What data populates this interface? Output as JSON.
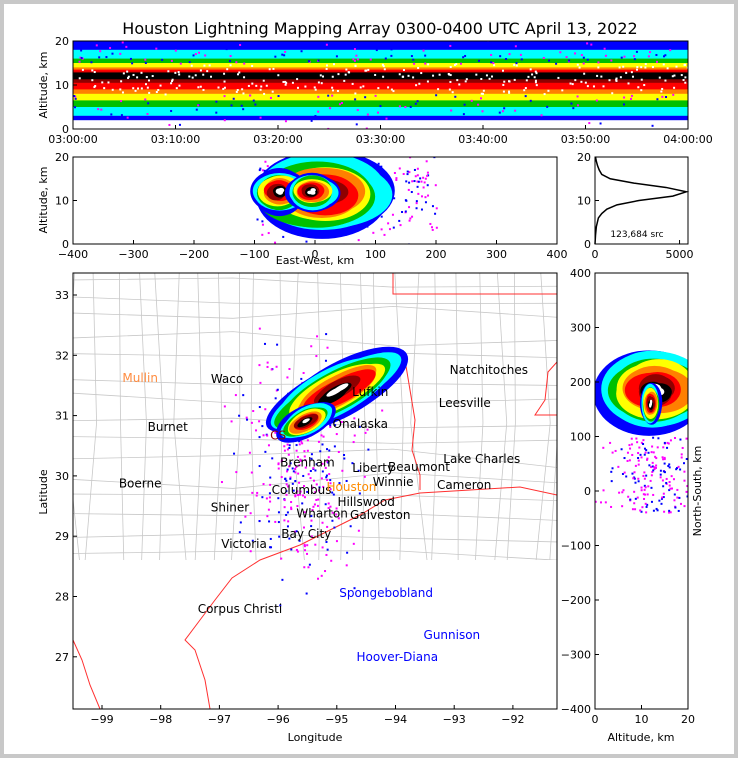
{
  "chart_data": {
    "title": "Houston Lightning Mapping Array 0300-0400 UTC April 13, 2022",
    "panels": [
      {
        "id": "time-height",
        "type": "scatter",
        "ylabel": "Altitude, km",
        "ylim": [
          0,
          20
        ],
        "yticks": [
          "0",
          "10",
          "20"
        ],
        "xticks": [
          "03:00:00",
          "03:10:00",
          "03:20:00",
          "03:30:00",
          "03:40:00",
          "03:50:00",
          "04:00:00"
        ],
        "band_center_km": 12,
        "band_spread_km": [
          2,
          20
        ]
      },
      {
        "id": "east-west-height",
        "type": "scatter",
        "xlabel": "East-West, km",
        "ylabel": "Altitude, km",
        "xlim": [
          -400,
          400
        ],
        "ylim": [
          0,
          20
        ],
        "xticks": [
          "−400",
          "−300",
          "−200",
          "−100",
          "0",
          "100",
          "200",
          "300",
          "400"
        ],
        "yticks": [
          "0",
          "10",
          "20"
        ],
        "core_x_km": [
          -100,
          120
        ],
        "core_alt_km": 12
      },
      {
        "id": "altitude-histogram",
        "type": "line",
        "xlim": [
          0,
          5500
        ],
        "ylim": [
          0,
          20
        ],
        "xticks": [
          "0",
          "5000"
        ],
        "yticks": [
          "0",
          "10",
          "20"
        ],
        "annotation": "123,684 src",
        "altitude": [
          0,
          2,
          4,
          6,
          7,
          8,
          9,
          10,
          11,
          12,
          13,
          14,
          15,
          16,
          17,
          18,
          19,
          20
        ],
        "counts": [
          0,
          30,
          80,
          200,
          400,
          700,
          1300,
          2600,
          4600,
          5400,
          4200,
          2300,
          900,
          400,
          250,
          150,
          80,
          30
        ]
      },
      {
        "id": "plan-view",
        "type": "scatter",
        "xlabel": "Longitude",
        "ylabel": "Latitude",
        "xlim": [
          -99.5,
          -91.25
        ],
        "ylim": [
          26.13,
          33.36
        ],
        "xticks": [
          "−99",
          "−98",
          "−97",
          "−96",
          "−95",
          "−94",
          "−93",
          "−92"
        ],
        "yticks": [
          "27",
          "28",
          "29",
          "30",
          "31",
          "32",
          "33"
        ],
        "cities": [
          {
            "name": "Mullin",
            "lon": -98.35,
            "lat": 31.62,
            "color": "#ff8c40"
          },
          {
            "name": "Waco",
            "lon": -96.87,
            "lat": 31.61,
            "color": "#000000"
          },
          {
            "name": "Burnet",
            "lon": -97.88,
            "lat": 30.81,
            "color": "#000000"
          },
          {
            "name": "Boerne",
            "lon": -98.35,
            "lat": 29.87,
            "color": "#000000"
          },
          {
            "name": "Shiner",
            "lon": -96.82,
            "lat": 29.48,
            "color": "#000000"
          },
          {
            "name": "Victoria",
            "lon": -96.58,
            "lat": 28.87,
            "color": "#000000"
          },
          {
            "name": "Corpus Christi",
            "lon": -96.65,
            "lat": 27.79,
            "color": "#000000"
          },
          {
            "name": "Natchitoches",
            "lon": -92.41,
            "lat": 31.76,
            "color": "#000000"
          },
          {
            "name": "Leesville",
            "lon": -92.82,
            "lat": 31.21,
            "color": "#000000"
          },
          {
            "name": "Lake Charles",
            "lon": -92.53,
            "lat": 30.28,
            "color": "#000000"
          },
          {
            "name": "Cameron",
            "lon": -92.83,
            "lat": 29.85,
            "color": "#000000"
          },
          {
            "name": "Beaumont",
            "lon": -93.6,
            "lat": 30.15,
            "color": "#000000"
          },
          {
            "name": "Winnie",
            "lon": -94.04,
            "lat": 29.9,
            "color": "#000000"
          },
          {
            "name": "Lufkin",
            "lon": -94.43,
            "lat": 31.39,
            "color": "#000000"
          },
          {
            "name": "Onalaska",
            "lon": -94.6,
            "lat": 30.86,
            "color": "#000000"
          },
          {
            "name": "Liberty",
            "lon": -94.38,
            "lat": 30.13,
            "color": "#000000"
          },
          {
            "name": "Hillswood",
            "lon": -94.5,
            "lat": 29.57,
            "color": "#000000"
          },
          {
            "name": "Galveston",
            "lon": -94.26,
            "lat": 29.35,
            "color": "#000000"
          },
          {
            "name": "Bay City",
            "lon": -95.52,
            "lat": 29.04,
            "color": "#000000"
          },
          {
            "name": "Columbus",
            "lon": -95.6,
            "lat": 29.77,
            "color": "#000000"
          },
          {
            "name": "Wharton",
            "lon": -95.25,
            "lat": 29.38,
            "color": "#000000"
          },
          {
            "name": "Brenham",
            "lon": -95.5,
            "lat": 30.22,
            "color": "#000000"
          },
          {
            "name": "CS",
            "lon": -96.0,
            "lat": 30.67,
            "color": "#8b0000"
          },
          {
            "name": "Houston",
            "lon": -94.75,
            "lat": 29.82,
            "color": "#ff8c00"
          },
          {
            "name": "Spongebobland",
            "lon": -94.16,
            "lat": 28.06,
            "color": "#0000ff"
          },
          {
            "name": "Gunnison",
            "lon": -93.04,
            "lat": 27.36,
            "color": "#0000ff"
          },
          {
            "name": "Hoover-Diana",
            "lon": -93.97,
            "lat": 27.0,
            "color": "#0000ff"
          }
        ]
      },
      {
        "id": "north-south-height",
        "type": "scatter",
        "xlabel": "Altitude, km",
        "ylabel": "North-South, km",
        "xlim": [
          0,
          20
        ],
        "ylim": [
          -400,
          400
        ],
        "xticks": [
          "0",
          "10",
          "20"
        ],
        "yticks": [
          "−400",
          "−300",
          "−200",
          "−100",
          "0",
          "100",
          "200",
          "300",
          "400"
        ],
        "core_ns_km": [
          120,
          250
        ]
      }
    ],
    "colors": [
      "#0000ff",
      "#00ffff",
      "#00c000",
      "#ffff00",
      "#ff8000",
      "#ff0000",
      "#900000",
      "#000000",
      "#ffffff"
    ]
  }
}
